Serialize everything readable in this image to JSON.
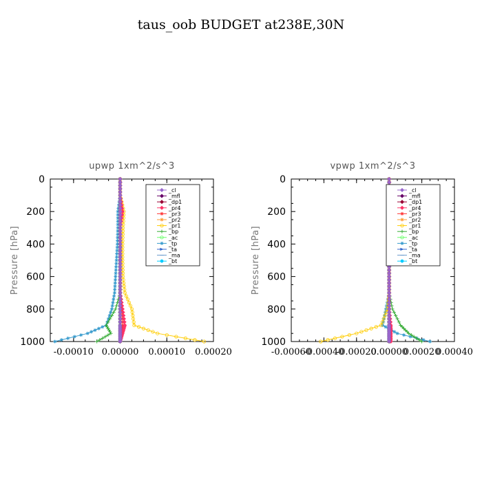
{
  "figure_title": "taus_oob  BUDGET at238E,30N",
  "chart_data": [
    {
      "type": "line",
      "title": "upwp   1xm^2/s^3",
      "ylabel": "Pressure [hPa]",
      "xlim": [
        -0.00015,
        0.0002
      ],
      "ylim": [
        1000,
        0
      ],
      "xticks": [
        -0.0001,
        0.0,
        0.0001,
        0.0002
      ],
      "xticklabels": [
        "-0.00010",
        "0.00000",
        "0.00010",
        "0.00020"
      ],
      "yticks": [
        0,
        200,
        400,
        600,
        800,
        1000
      ],
      "yticklabels": [
        "0",
        "200",
        "400",
        "600",
        "800",
        "1000"
      ],
      "legend_position": "top-right",
      "series": [
        {
          "name": "_cl",
          "color": "#9966cc",
          "marker": "diamond",
          "x": [
            0,
            0,
            0,
            0,
            0,
            0,
            0,
            0,
            0,
            0,
            0,
            0
          ],
          "y": [
            0,
            100,
            200,
            300,
            400,
            500,
            600,
            700,
            800,
            900,
            950,
            1000
          ]
        },
        {
          "name": "_mfl",
          "color": "#660066",
          "marker": "diamond",
          "x": [
            0,
            0,
            0,
            0,
            0,
            0,
            0,
            0,
            0,
            0,
            0,
            0
          ],
          "y": [
            0,
            100,
            200,
            300,
            400,
            500,
            600,
            700,
            800,
            900,
            950,
            1000
          ]
        },
        {
          "name": "_dp1",
          "color": "#990033",
          "marker": "diamond",
          "x": [
            0,
            0,
            0,
            0,
            0,
            0,
            0,
            0,
            0,
            0,
            0,
            0
          ],
          "y": [
            0,
            100,
            200,
            300,
            400,
            500,
            600,
            700,
            800,
            900,
            950,
            1000
          ]
        },
        {
          "name": "_pr4",
          "color": "#ff3366",
          "marker": "diamond",
          "x": [
            0,
            0,
            5e-06,
            0,
            0,
            0,
            0,
            0,
            5e-06,
            1e-05,
            5e-06,
            0
          ],
          "y": [
            0,
            100,
            200,
            300,
            400,
            500,
            600,
            700,
            800,
            900,
            950,
            1000
          ]
        },
        {
          "name": "_pr3",
          "color": "#ff3333",
          "marker": "star",
          "x": [
            0,
            0,
            0,
            0,
            0,
            0,
            0,
            0,
            3e-06,
            6e-06,
            3e-06,
            0
          ],
          "y": [
            0,
            100,
            200,
            300,
            400,
            500,
            600,
            700,
            800,
            900,
            950,
            1000
          ]
        },
        {
          "name": "_pr2",
          "color": "#ff9933",
          "marker": "star",
          "x": [
            0,
            0,
            0,
            0,
            0,
            0,
            0,
            0,
            0,
            0,
            0,
            0
          ],
          "y": [
            0,
            100,
            200,
            300,
            400,
            500,
            600,
            700,
            800,
            900,
            950,
            1000
          ]
        },
        {
          "name": "_pr1",
          "color": "#ffcc00",
          "marker": "circle",
          "x": [
            0,
            0,
            8e-06,
            6e-06,
            5e-06,
            5e-06,
            6e-06,
            1e-05,
            2.5e-05,
            3e-05,
            8e-05,
            0.00018
          ],
          "y": [
            0,
            100,
            200,
            300,
            400,
            500,
            600,
            700,
            800,
            900,
            950,
            1000
          ]
        },
        {
          "name": "_bp",
          "color": "#33aa33",
          "marker": "plus",
          "x": [
            0,
            0,
            0,
            0,
            0,
            0,
            0,
            0,
            -1e-05,
            -3e-05,
            -2e-05,
            -5e-05
          ],
          "y": [
            0,
            100,
            200,
            300,
            400,
            500,
            600,
            700,
            800,
            900,
            950,
            1000
          ]
        },
        {
          "name": "_ac",
          "color": "#66ff66",
          "marker": "circle",
          "x": [
            0,
            0,
            0,
            0,
            0,
            0,
            0,
            0,
            0,
            0,
            0,
            0
          ],
          "y": [
            0,
            100,
            200,
            300,
            400,
            500,
            600,
            700,
            800,
            900,
            950,
            1000
          ]
        },
        {
          "name": "_tp",
          "color": "#3399cc",
          "marker": "star",
          "x": [
            0,
            0,
            -5e-06,
            -5e-06,
            -6e-06,
            -8e-06,
            -1e-05,
            -1.2e-05,
            -1.8e-05,
            -3e-05,
            -7e-05,
            -0.00014
          ],
          "y": [
            0,
            100,
            200,
            300,
            400,
            500,
            600,
            700,
            800,
            900,
            950,
            1000
          ]
        },
        {
          "name": "_ta",
          "color": "#3366cc",
          "marker": "arrow",
          "x": [
            0,
            0,
            0,
            0,
            0,
            0,
            0,
            0,
            0,
            0,
            0,
            0
          ],
          "y": [
            0,
            100,
            200,
            300,
            400,
            500,
            600,
            700,
            800,
            900,
            950,
            1000
          ]
        },
        {
          "name": "_ma",
          "color": "#6699cc",
          "marker": "dash",
          "x": [
            0,
            0,
            0,
            0,
            0,
            0,
            0,
            0,
            0,
            0,
            0,
            0
          ],
          "y": [
            0,
            100,
            200,
            300,
            400,
            500,
            600,
            700,
            800,
            900,
            950,
            1000
          ]
        },
        {
          "name": "_bt",
          "color": "#00ccff",
          "marker": "dot",
          "x": [
            0,
            0,
            0,
            0,
            0,
            0,
            0,
            0,
            0,
            0,
            0,
            0
          ],
          "y": [
            0,
            100,
            200,
            300,
            400,
            500,
            600,
            700,
            800,
            900,
            950,
            1000
          ]
        }
      ]
    },
    {
      "type": "line",
      "title": "vpwp   1xm^2/s^3",
      "ylabel": "Pressure [hPa]",
      "xlim": [
        -0.0006,
        0.0004
      ],
      "ylim": [
        1000,
        0
      ],
      "xticks": [
        -0.0006,
        -0.0004,
        -0.0002,
        0.0,
        0.0002,
        0.0004
      ],
      "xticklabels": [
        "-0.00060",
        "-0.00040",
        "-0.00020",
        "0.00000",
        "0.00020",
        "0.00040"
      ],
      "yticks": [
        0,
        200,
        400,
        600,
        800,
        1000
      ],
      "yticklabels": [
        "0",
        "200",
        "400",
        "600",
        "800",
        "1000"
      ],
      "legend_position": "top-right",
      "series": [
        {
          "name": "_cl",
          "color": "#9966cc",
          "marker": "diamond",
          "x": [
            0,
            0,
            0,
            0,
            0,
            0,
            0,
            0,
            0,
            0,
            0,
            0
          ],
          "y": [
            0,
            100,
            200,
            300,
            400,
            500,
            600,
            700,
            800,
            900,
            950,
            1000
          ]
        },
        {
          "name": "_mfl",
          "color": "#660066",
          "marker": "diamond",
          "x": [
            0,
            0,
            0,
            0,
            0,
            0,
            0,
            0,
            0,
            0,
            0,
            0
          ],
          "y": [
            0,
            100,
            200,
            300,
            400,
            500,
            600,
            700,
            800,
            900,
            950,
            1000
          ]
        },
        {
          "name": "_dp1",
          "color": "#990033",
          "marker": "diamond",
          "x": [
            0,
            0,
            0,
            0,
            0,
            0,
            0,
            0,
            0,
            0,
            0,
            0
          ],
          "y": [
            0,
            100,
            200,
            300,
            400,
            500,
            600,
            700,
            800,
            900,
            950,
            1000
          ]
        },
        {
          "name": "_pr4",
          "color": "#ff3366",
          "marker": "diamond",
          "x": [
            0,
            0,
            0,
            0,
            0,
            0,
            0,
            0,
            0,
            1e-05,
            1e-05,
            1e-05
          ],
          "y": [
            0,
            100,
            200,
            300,
            400,
            500,
            600,
            700,
            800,
            900,
            950,
            1000
          ]
        },
        {
          "name": "_pr3",
          "color": "#ff3333",
          "marker": "star",
          "x": [
            0,
            0,
            0,
            0,
            0,
            0,
            0,
            0,
            0,
            0,
            0,
            0
          ],
          "y": [
            0,
            100,
            200,
            300,
            400,
            500,
            600,
            700,
            800,
            900,
            950,
            1000
          ]
        },
        {
          "name": "_pr2",
          "color": "#ff9933",
          "marker": "star",
          "x": [
            0,
            0,
            0,
            0,
            0,
            0,
            0,
            0,
            0,
            0,
            0,
            0
          ],
          "y": [
            0,
            100,
            200,
            300,
            400,
            500,
            600,
            700,
            800,
            900,
            950,
            1000
          ]
        },
        {
          "name": "_pr1",
          "color": "#ffcc00",
          "marker": "circle",
          "x": [
            0,
            0,
            0,
            0,
            0,
            0,
            0,
            0,
            -1e-05,
            -5e-05,
            -0.0002,
            -0.00042
          ],
          "y": [
            0,
            100,
            200,
            300,
            400,
            500,
            600,
            700,
            800,
            900,
            950,
            1000
          ]
        },
        {
          "name": "_bp",
          "color": "#33aa33",
          "marker": "plus",
          "x": [
            0,
            0,
            0,
            0,
            0,
            0,
            0,
            0,
            2e-05,
            7e-05,
            0.00012,
            0.0002
          ],
          "y": [
            0,
            100,
            200,
            300,
            400,
            500,
            600,
            700,
            800,
            900,
            950,
            1000
          ]
        },
        {
          "name": "_ac",
          "color": "#66ff66",
          "marker": "circle",
          "x": [
            0,
            0,
            0,
            0,
            0,
            0,
            0,
            0,
            0,
            0,
            0,
            0
          ],
          "y": [
            0,
            100,
            200,
            300,
            400,
            500,
            600,
            700,
            800,
            900,
            950,
            1000
          ]
        },
        {
          "name": "_tp",
          "color": "#3399cc",
          "marker": "star",
          "x": [
            0,
            0,
            0,
            0,
            0,
            0,
            0,
            0,
            -2e-05,
            -4e-05,
            5e-05,
            0.00025
          ],
          "y": [
            0,
            100,
            200,
            300,
            400,
            500,
            600,
            700,
            800,
            900,
            950,
            1000
          ]
        },
        {
          "name": "_ta",
          "color": "#3366cc",
          "marker": "arrow",
          "x": [
            0,
            0,
            0,
            0,
            0,
            0,
            0,
            0,
            0,
            0,
            0,
            0
          ],
          "y": [
            0,
            100,
            200,
            300,
            400,
            500,
            600,
            700,
            800,
            900,
            950,
            1000
          ]
        },
        {
          "name": "_ma",
          "color": "#6699cc",
          "marker": "dash",
          "x": [
            0,
            0,
            0,
            0,
            0,
            0,
            0,
            0,
            0,
            0,
            0,
            0
          ],
          "y": [
            0,
            100,
            200,
            300,
            400,
            500,
            600,
            700,
            800,
            900,
            950,
            1000
          ]
        },
        {
          "name": "_bt",
          "color": "#00ccff",
          "marker": "dot",
          "x": [
            0,
            0,
            0,
            0,
            0,
            0,
            0,
            0,
            0,
            0,
            0,
            0
          ],
          "y": [
            0,
            100,
            200,
            300,
            400,
            500,
            600,
            700,
            800,
            900,
            950,
            1000
          ]
        }
      ]
    }
  ]
}
